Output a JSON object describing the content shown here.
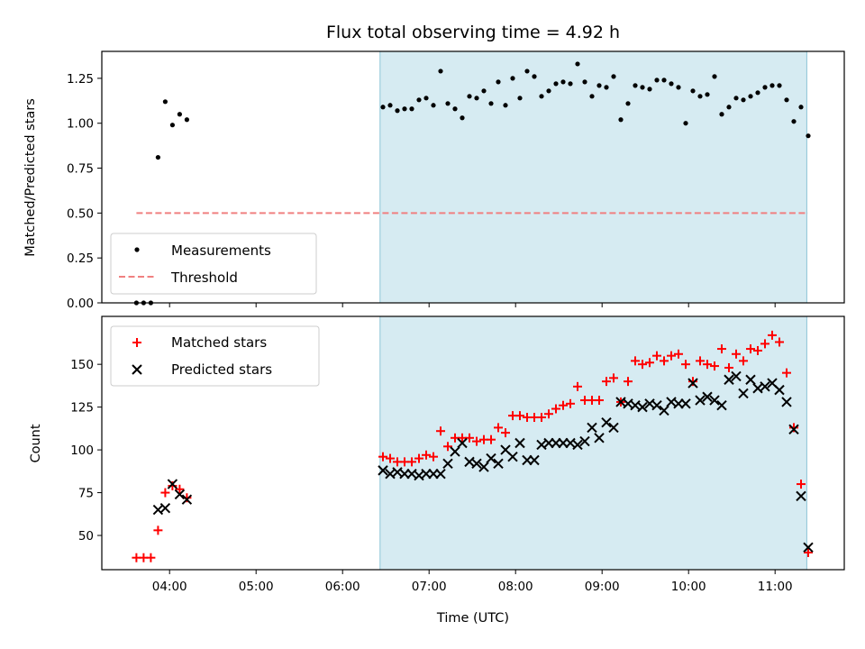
{
  "chart_data": [
    {
      "type": "scatter",
      "title": "Flux total observing time = 4.92 h",
      "ylabel": "Matched/Predicted stars",
      "ylim": [
        0,
        1.4
      ],
      "yticks": [
        "0.00",
        "0.25",
        "0.50",
        "0.75",
        "1.00",
        "1.25"
      ],
      "observing_window": [
        "06:26",
        "11:22"
      ],
      "legend_position": "lower-left",
      "series": [
        {
          "name": "Measurements",
          "marker": "dot",
          "color": "#000000",
          "x": [
            "03:37",
            "03:42",
            "03:47",
            "03:52",
            "03:57",
            "04:02",
            "04:07",
            "04:12",
            "06:28",
            "06:33",
            "06:38",
            "06:43",
            "06:48",
            "06:53",
            "06:58",
            "07:03",
            "07:08",
            "07:13",
            "07:18",
            "07:23",
            "07:28",
            "07:33",
            "07:38",
            "07:43",
            "07:48",
            "07:53",
            "07:58",
            "08:03",
            "08:08",
            "08:13",
            "08:18",
            "08:23",
            "08:28",
            "08:33",
            "08:38",
            "08:43",
            "08:48",
            "08:53",
            "08:58",
            "09:03",
            "09:08",
            "09:13",
            "09:18",
            "09:23",
            "09:28",
            "09:33",
            "09:38",
            "09:43",
            "09:48",
            "09:53",
            "09:58",
            "10:03",
            "10:08",
            "10:13",
            "10:18",
            "10:23",
            "10:28",
            "10:33",
            "10:38",
            "10:43",
            "10:48",
            "10:53",
            "10:58",
            "11:03",
            "11:08",
            "11:13",
            "11:18",
            "11:23"
          ],
          "y": [
            0,
            0,
            0,
            0.81,
            1.12,
            0.99,
            1.05,
            1.02,
            1.09,
            1.1,
            1.07,
            1.08,
            1.08,
            1.13,
            1.14,
            1.1,
            1.29,
            1.11,
            1.08,
            1.03,
            1.15,
            1.14,
            1.18,
            1.11,
            1.23,
            1.1,
            1.25,
            1.14,
            1.29,
            1.26,
            1.15,
            1.18,
            1.22,
            1.23,
            1.22,
            1.33,
            1.23,
            1.15,
            1.21,
            1.2,
            1.26,
            1.02,
            1.11,
            1.21,
            1.2,
            1.19,
            1.24,
            1.24,
            1.22,
            1.2,
            1.0,
            1.18,
            1.15,
            1.16,
            1.26,
            1.05,
            1.09,
            1.14,
            1.13,
            1.15,
            1.17,
            1.2,
            1.21,
            1.21,
            1.13,
            1.01,
            1.09,
            0.93
          ]
        },
        {
          "name": "Threshold",
          "marker": "dashed-line",
          "color": "#f08080",
          "x": [
            "03:37",
            "11:23"
          ],
          "y": [
            0.5,
            0.5
          ]
        }
      ]
    },
    {
      "type": "scatter",
      "xlabel": "Time (UTC)",
      "ylabel": "Count",
      "ylim": [
        30,
        178
      ],
      "yticks": [
        "50",
        "75",
        "100",
        "125",
        "150"
      ],
      "xticks": [
        "04:00",
        "05:00",
        "06:00",
        "07:00",
        "08:00",
        "09:00",
        "10:00",
        "11:00"
      ],
      "xlim": [
        "03:13",
        "11:48"
      ],
      "observing_window": [
        "06:26",
        "11:22"
      ],
      "legend_position": "upper-left",
      "series": [
        {
          "name": "Matched stars",
          "marker": "plus",
          "color": "#ff0000",
          "x": [
            "03:37",
            "03:42",
            "03:47",
            "03:52",
            "03:57",
            "04:02",
            "04:07",
            "04:12",
            "06:28",
            "06:33",
            "06:38",
            "06:43",
            "06:48",
            "06:53",
            "06:58",
            "07:03",
            "07:08",
            "07:13",
            "07:18",
            "07:23",
            "07:28",
            "07:33",
            "07:38",
            "07:43",
            "07:48",
            "07:53",
            "07:58",
            "08:03",
            "08:08",
            "08:13",
            "08:18",
            "08:23",
            "08:28",
            "08:33",
            "08:38",
            "08:43",
            "08:48",
            "08:53",
            "08:58",
            "09:03",
            "09:08",
            "09:13",
            "09:18",
            "09:23",
            "09:28",
            "09:33",
            "09:38",
            "09:43",
            "09:48",
            "09:53",
            "09:58",
            "10:03",
            "10:08",
            "10:13",
            "10:18",
            "10:23",
            "10:28",
            "10:33",
            "10:38",
            "10:43",
            "10:48",
            "10:53",
            "10:58",
            "11:03",
            "11:08",
            "11:13",
            "11:18",
            "11:23"
          ],
          "y": [
            37,
            37,
            37,
            53,
            75,
            79,
            77,
            72,
            96,
            95,
            93,
            93,
            93,
            95,
            97,
            96,
            111,
            102,
            107,
            107,
            107,
            105,
            106,
            106,
            113,
            110,
            120,
            120,
            119,
            119,
            119,
            121,
            124,
            126,
            127,
            137,
            129,
            129,
            129,
            140,
            142,
            128,
            140,
            152,
            150,
            151,
            155,
            152,
            155,
            156,
            150,
            140,
            152,
            150,
            149,
            159,
            148,
            156,
            152,
            159,
            158,
            162,
            167,
            163,
            145,
            113,
            80,
            40
          ]
        },
        {
          "name": "Predicted stars",
          "marker": "x",
          "color": "#000000",
          "x": [
            "03:52",
            "03:57",
            "04:02",
            "04:07",
            "04:12",
            "06:28",
            "06:33",
            "06:38",
            "06:43",
            "06:48",
            "06:53",
            "06:58",
            "07:03",
            "07:08",
            "07:13",
            "07:18",
            "07:23",
            "07:28",
            "07:33",
            "07:38",
            "07:43",
            "07:48",
            "07:53",
            "07:58",
            "08:03",
            "08:08",
            "08:13",
            "08:18",
            "08:23",
            "08:28",
            "08:33",
            "08:38",
            "08:43",
            "08:48",
            "08:53",
            "08:58",
            "09:03",
            "09:08",
            "09:13",
            "09:18",
            "09:23",
            "09:28",
            "09:33",
            "09:38",
            "09:43",
            "09:48",
            "09:53",
            "09:58",
            "10:03",
            "10:08",
            "10:13",
            "10:18",
            "10:23",
            "10:28",
            "10:33",
            "10:38",
            "10:43",
            "10:48",
            "10:53",
            "10:58",
            "11:03",
            "11:08",
            "11:13",
            "11:18",
            "11:23"
          ],
          "y": [
            65,
            66,
            80,
            74,
            71,
            88,
            86,
            87,
            86,
            86,
            85,
            86,
            86,
            86,
            92,
            99,
            104,
            93,
            92,
            90,
            95,
            92,
            100,
            96,
            104,
            94,
            94,
            103,
            104,
            104,
            104,
            104,
            103,
            105,
            113,
            107,
            116,
            113,
            128,
            127,
            126,
            125,
            127,
            126,
            123,
            128,
            127,
            127,
            139,
            129,
            131,
            129,
            126,
            141,
            143,
            133,
            141,
            136,
            137,
            139,
            135,
            128,
            112,
            73,
            43
          ]
        }
      ]
    }
  ]
}
